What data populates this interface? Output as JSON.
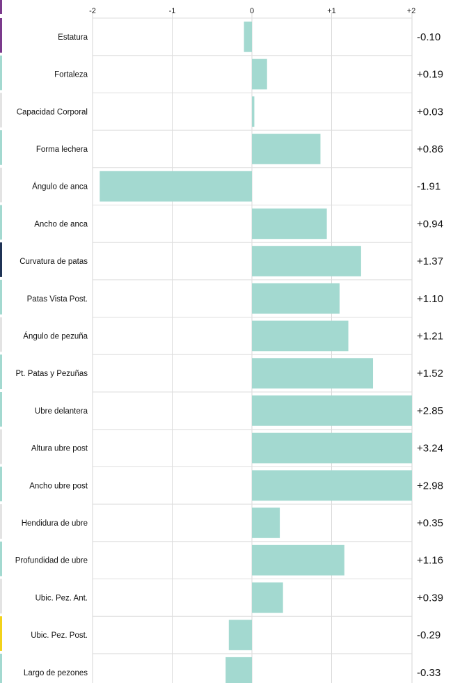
{
  "chart_data": {
    "type": "bar",
    "orientation": "horizontal",
    "title": "",
    "xlabel": "",
    "ylabel": "",
    "xlim": [
      -2,
      2.2
    ],
    "x_ticks": [
      {
        "value": -2,
        "label": "-2"
      },
      {
        "value": -1,
        "label": "-1"
      },
      {
        "value": 0,
        "label": "0"
      },
      {
        "value": 1,
        "label": "+1"
      },
      {
        "value": 2,
        "label": "+2"
      }
    ],
    "grid": true,
    "bar_color": "#a3d9d0",
    "categories": [
      "Estatura",
      "Fortaleza",
      "Capacidad Corporal",
      "Forma lechera",
      "Ángulo de anca",
      "Ancho de anca",
      "Curvatura de patas",
      "Patas Vista Post.",
      "Ángulo de pezuña",
      "Pt. Patas y Pezuñas",
      "Ubre delantera",
      "Altura ubre post",
      "Ancho ubre post",
      "Hendidura de ubre",
      "Profundidad de ubre",
      "Ubic. Pez. Ant.",
      "Ubic. Pez. Post.",
      "Largo de pezones"
    ],
    "values": [
      -0.1,
      0.19,
      0.03,
      0.86,
      -1.91,
      0.94,
      1.37,
      1.1,
      1.21,
      1.52,
      2.85,
      3.24,
      2.98,
      0.35,
      1.16,
      0.39,
      -0.29,
      -0.33
    ],
    "value_labels": [
      "-0.10",
      "+0.19",
      "+0.03",
      "+0.86",
      "-1.91",
      "+0.94",
      "+1.37",
      "+1.10",
      "+1.21",
      "+1.52",
      "+2.85",
      "+3.24",
      "+2.98",
      "+0.35",
      "+1.16",
      "+0.39",
      "-0.29",
      "-0.33"
    ],
    "group_colors": [
      "#7b3a8c",
      "#a3d9d0",
      "#1f3355",
      "#f2d21b",
      "#e3e3e3"
    ]
  }
}
